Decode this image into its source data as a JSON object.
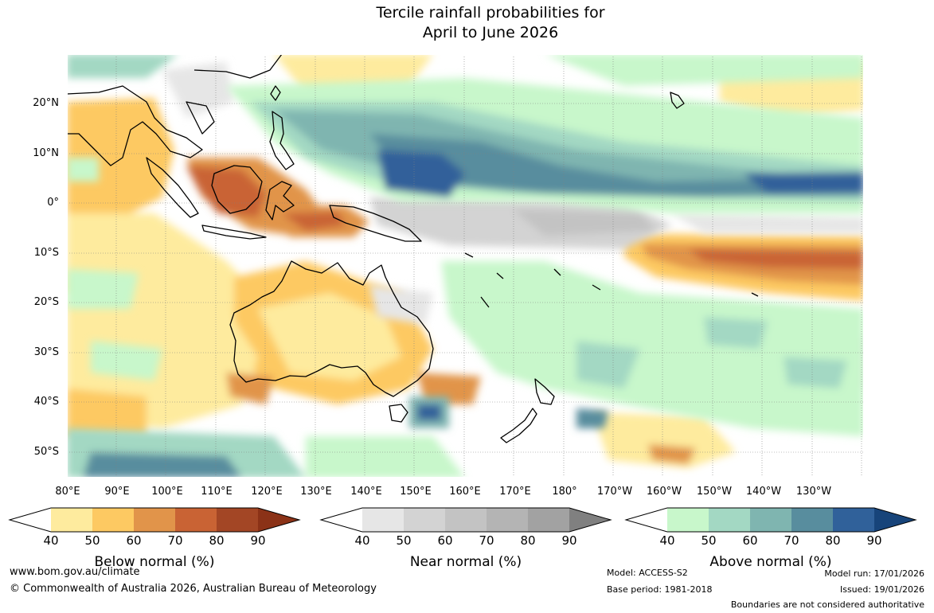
{
  "title": {
    "line1": "Tercile rainfall probabilities for",
    "line2": "April to June 2026"
  },
  "map": {
    "lat_labels": [
      "20°N",
      "10°N",
      "0°",
      "10°S",
      "20°S",
      "30°S",
      "40°S",
      "50°S"
    ],
    "lon_labels": [
      "80°E",
      "90°E",
      "100°E",
      "110°E",
      "120°E",
      "130°E",
      "140°E",
      "150°E",
      "160°E",
      "170°E",
      "180°",
      "170°W",
      "160°W",
      "150°W",
      "140°W",
      "130°W"
    ]
  },
  "colorbars": [
    {
      "title": "Below normal (%)",
      "ticks": [
        "40",
        "50",
        "60",
        "70",
        "80",
        "90"
      ],
      "colors": [
        "#ffffff",
        "#feeb9e",
        "#fdc962",
        "#e1944a",
        "#c96334",
        "#a34625",
        "#8b3217"
      ]
    },
    {
      "title": "Near normal (%)",
      "ticks": [
        "40",
        "50",
        "60",
        "70",
        "80",
        "90"
      ],
      "colors": [
        "#ffffff",
        "#e6e6e6",
        "#d3d3d3",
        "#c3c3c3",
        "#b4b4b4",
        "#a2a2a2",
        "#808080"
      ]
    },
    {
      "title": "Above normal (%)",
      "ticks": [
        "40",
        "50",
        "60",
        "70",
        "80",
        "90"
      ],
      "colors": [
        "#ffffff",
        "#c8f7cb",
        "#a3d8c3",
        "#7fb5b0",
        "#588d9e",
        "#30619a",
        "#17447a"
      ]
    }
  ],
  "footer": {
    "url": "www.bom.gov.au/climate",
    "copyright": "© Commonwealth of Australia 2026, Australian Bureau of Meteorology",
    "model": "Model: ACCESS-S2",
    "base_period": "Base period: 1981-2018",
    "model_run": "Model run: 17/01/2026",
    "issued": "Issued: 19/01/2026",
    "boundaries": "Boundaries are not considered authoritative"
  }
}
